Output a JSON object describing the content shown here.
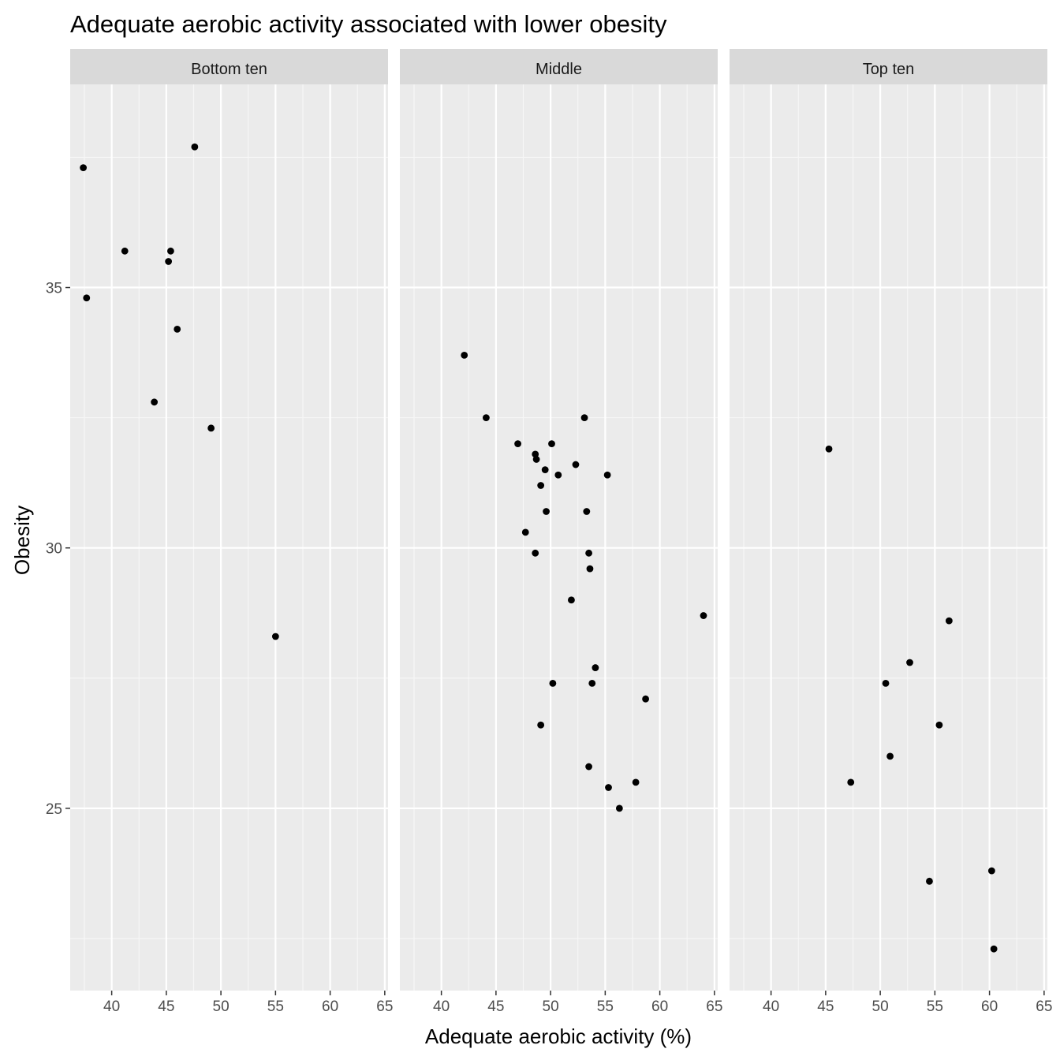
{
  "chart_data": {
    "type": "scatter",
    "title": "Adequate aerobic activity associated with lower obesity",
    "xlabel": "Adequate aerobic activity (%)",
    "ylabel": "Obesity",
    "xlim": [
      36.2,
      65.3
    ],
    "ylim": [
      21.5,
      38.9
    ],
    "x_ticks": [
      40,
      45,
      50,
      55,
      60,
      65
    ],
    "y_ticks": [
      25,
      30,
      35
    ],
    "grid": true,
    "facets": [
      {
        "label": "Bottom ten",
        "points": [
          {
            "x": 37.4,
            "y": 37.3
          },
          {
            "x": 37.7,
            "y": 34.8
          },
          {
            "x": 41.2,
            "y": 35.7
          },
          {
            "x": 43.9,
            "y": 32.8
          },
          {
            "x": 45.2,
            "y": 35.5
          },
          {
            "x": 45.4,
            "y": 35.7
          },
          {
            "x": 46.0,
            "y": 34.2
          },
          {
            "x": 47.6,
            "y": 37.7
          },
          {
            "x": 49.1,
            "y": 32.3
          },
          {
            "x": 55.0,
            "y": 28.3
          }
        ]
      },
      {
        "label": "Middle",
        "points": [
          {
            "x": 42.1,
            "y": 33.7
          },
          {
            "x": 44.1,
            "y": 32.5
          },
          {
            "x": 47.0,
            "y": 32.0
          },
          {
            "x": 48.6,
            "y": 31.8
          },
          {
            "x": 48.7,
            "y": 31.7
          },
          {
            "x": 49.5,
            "y": 31.5
          },
          {
            "x": 50.1,
            "y": 32.0
          },
          {
            "x": 50.7,
            "y": 31.4
          },
          {
            "x": 52.3,
            "y": 31.6
          },
          {
            "x": 53.1,
            "y": 32.5
          },
          {
            "x": 55.2,
            "y": 31.4
          },
          {
            "x": 49.1,
            "y": 31.2
          },
          {
            "x": 49.6,
            "y": 30.7
          },
          {
            "x": 53.3,
            "y": 30.7
          },
          {
            "x": 47.7,
            "y": 30.3
          },
          {
            "x": 48.6,
            "y": 29.9
          },
          {
            "x": 53.5,
            "y": 29.9
          },
          {
            "x": 53.6,
            "y": 29.6
          },
          {
            "x": 51.9,
            "y": 29.0
          },
          {
            "x": 64.0,
            "y": 28.7
          },
          {
            "x": 54.1,
            "y": 27.7
          },
          {
            "x": 50.2,
            "y": 27.4
          },
          {
            "x": 53.8,
            "y": 27.4
          },
          {
            "x": 58.7,
            "y": 27.1
          },
          {
            "x": 49.1,
            "y": 26.6
          },
          {
            "x": 53.5,
            "y": 25.8
          },
          {
            "x": 57.8,
            "y": 25.5
          },
          {
            "x": 55.3,
            "y": 25.4
          },
          {
            "x": 56.3,
            "y": 25.0
          }
        ]
      },
      {
        "label": "Top ten",
        "points": [
          {
            "x": 45.3,
            "y": 31.9
          },
          {
            "x": 56.3,
            "y": 28.6
          },
          {
            "x": 52.7,
            "y": 27.8
          },
          {
            "x": 50.5,
            "y": 27.4
          },
          {
            "x": 55.4,
            "y": 26.6
          },
          {
            "x": 50.9,
            "y": 26.0
          },
          {
            "x": 47.3,
            "y": 25.5
          },
          {
            "x": 60.2,
            "y": 23.8
          },
          {
            "x": 54.5,
            "y": 23.6
          },
          {
            "x": 60.4,
            "y": 22.3
          }
        ]
      }
    ]
  }
}
